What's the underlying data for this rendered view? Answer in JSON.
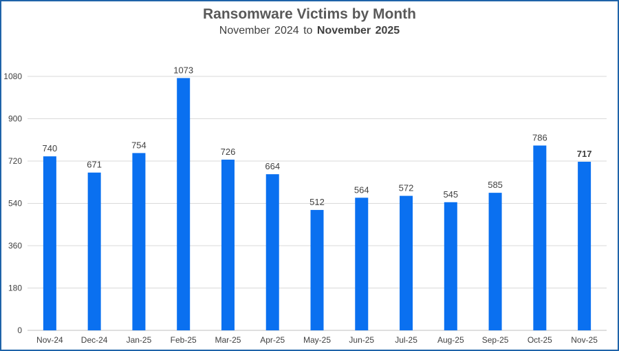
{
  "chart_data": {
    "type": "bar",
    "title": "Ransomware Victims by Month",
    "subtitle_prefix": "November 2024 to",
    "subtitle_bold": "November 2025",
    "xlabel": "",
    "ylabel": "",
    "ylim": [
      0,
      1080
    ],
    "yticks": [
      0,
      180,
      360,
      540,
      720,
      900,
      1080
    ],
    "grid": true,
    "categories": [
      "Nov-24",
      "Dec-24",
      "Jan-25",
      "Feb-25",
      "Mar-25",
      "Apr-25",
      "May-25",
      "Jun-25",
      "Jul-25",
      "Aug-25",
      "Sep-25",
      "Oct-25",
      "Nov-25"
    ],
    "values": [
      740,
      671,
      754,
      1073,
      726,
      664,
      512,
      564,
      572,
      545,
      585,
      786,
      717
    ],
    "data_labels": [
      "740",
      "671",
      "754",
      "1073",
      "726",
      "664",
      "512",
      "564",
      "572",
      "545",
      "585",
      "786",
      "717"
    ],
    "bold_label_index": 12,
    "colors": {
      "bar": "#0a70f0",
      "grid": "#d9d9d9",
      "border": "#1e63a8",
      "text": "#404040"
    }
  }
}
